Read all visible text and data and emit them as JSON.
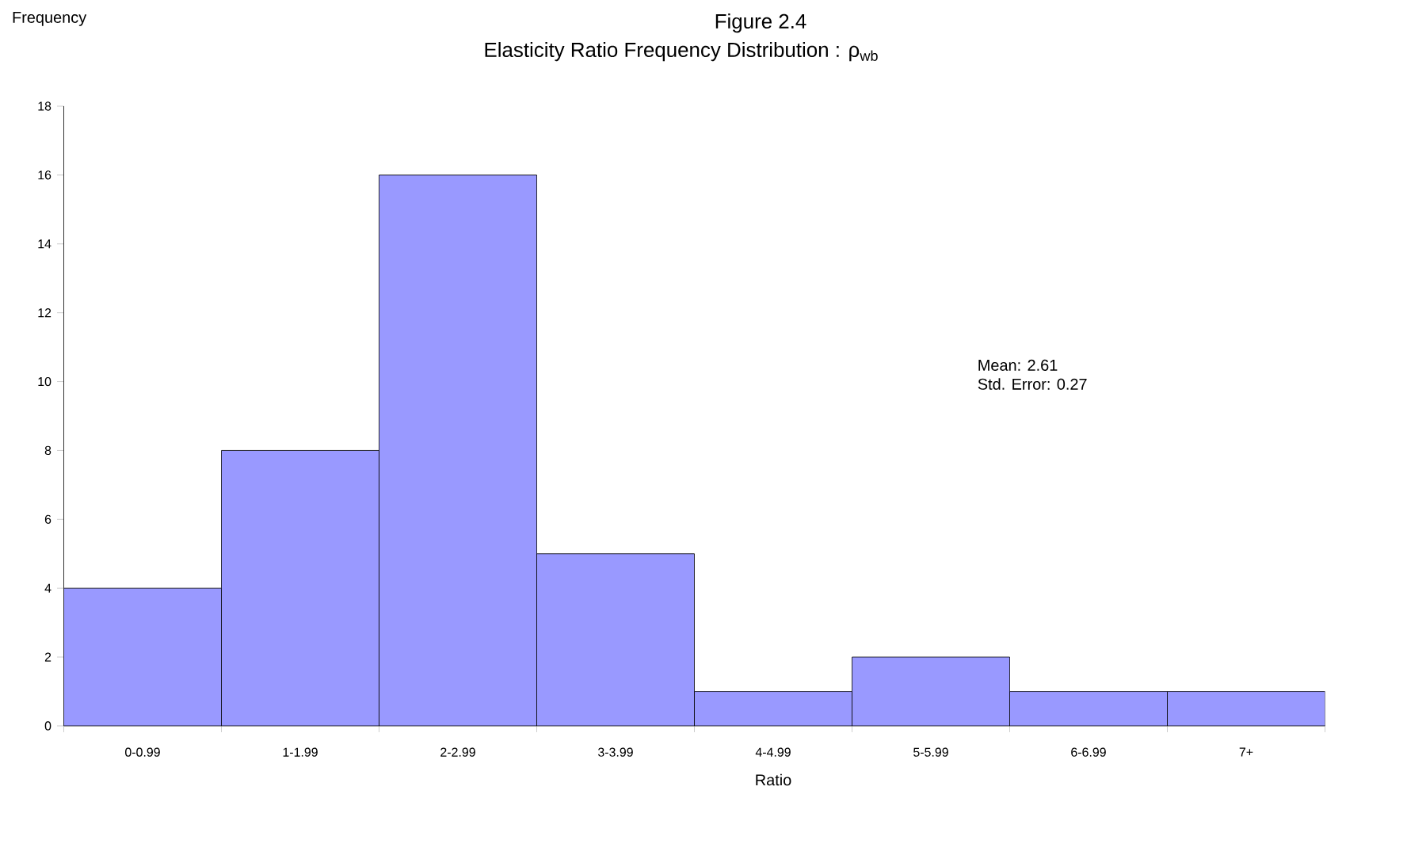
{
  "chart_data": {
    "type": "bar",
    "title": "Figure 2.4",
    "subtitle": "Elasticity Ratio Frequency Distribution : ρ$_{wb}$",
    "xlabel": "Ratio",
    "ylabel": "Frequency",
    "categories": [
      "0-0.99",
      "1-1.99",
      "2-2.99",
      "3-3.99",
      "4-4.99",
      "5-5.99",
      "6-6.99",
      "7+"
    ],
    "values": [
      4,
      8,
      16,
      5,
      1,
      2,
      1,
      1
    ],
    "color": "#9999ff",
    "ylim": [
      0,
      18
    ],
    "yticks": [
      0,
      2,
      4,
      6,
      8,
      10,
      12,
      14,
      16,
      18
    ],
    "annotations": [
      "Mean: 2.61",
      "Std. Error: 0.27"
    ]
  }
}
